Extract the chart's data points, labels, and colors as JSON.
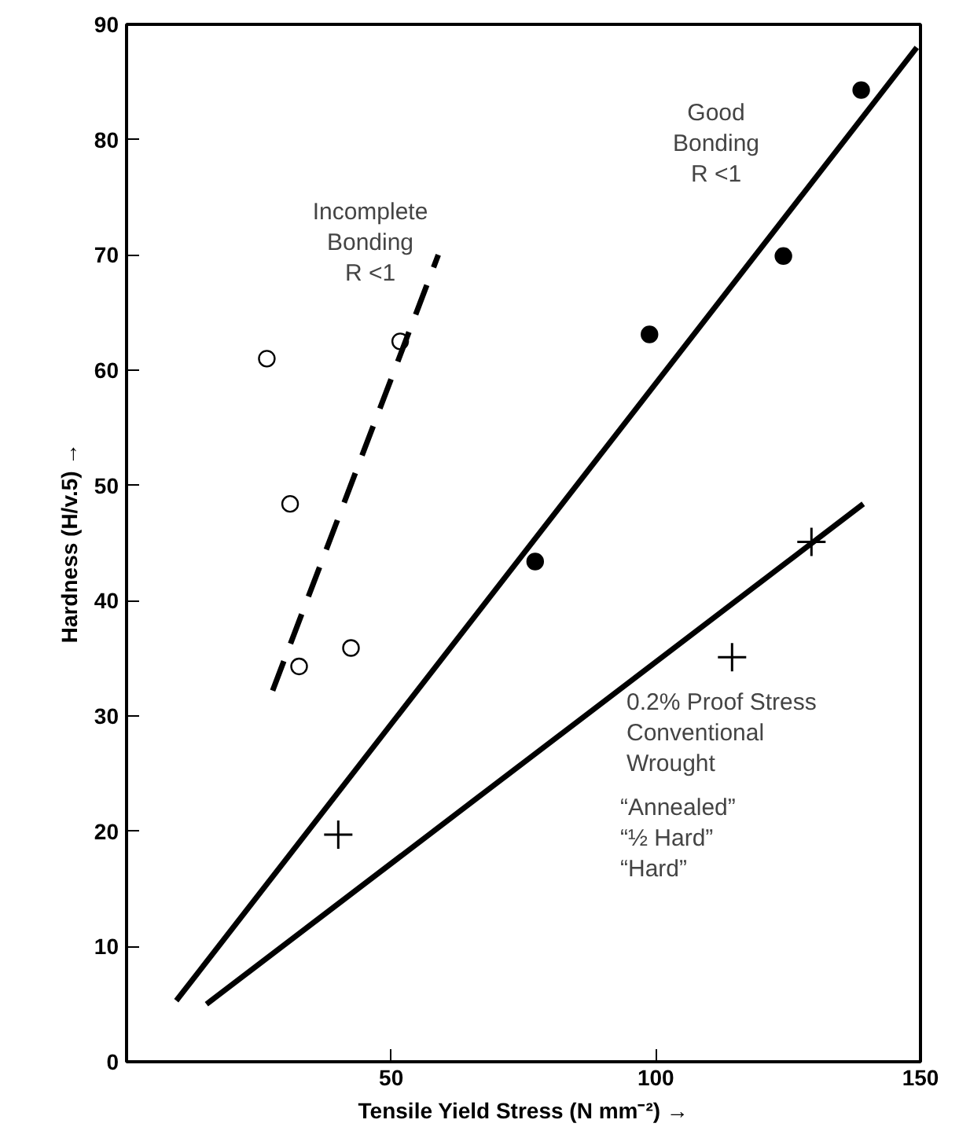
{
  "chart_data": {
    "type": "scatter",
    "xlabel": "Tensile Yield Stress (N mm⁻²) →",
    "ylabel": "Hardness (H/v.5) →",
    "xlim": [
      0,
      150
    ],
    "xticks": [
      50,
      100,
      150
    ],
    "ylim": [
      0,
      90
    ],
    "yticks": [
      0,
      10,
      20,
      30,
      40,
      50,
      60,
      70,
      80,
      90
    ],
    "grid": false,
    "series": [
      {
        "marker": "circle",
        "color": "#ffffff",
        "x": [
          26.5,
          30.9,
          32.6,
          42.4,
          51.7
        ],
        "values": [
          61.0,
          48.4,
          34.3,
          35.9,
          62.5
        ]
      },
      {
        "marker": "circle",
        "color": "#000000",
        "x": [
          77.2,
          98.8,
          124.1,
          138.8
        ],
        "values": [
          43.4,
          63.1,
          69.9,
          84.3
        ]
      },
      {
        "marker": "cross",
        "color": "#000000",
        "x": [
          40.0,
          114.4,
          129.4
        ],
        "values": [
          19.7,
          35.1,
          45.1
        ]
      },
      {
        "type": "line",
        "line_style": "dashed",
        "color": "#000000",
        "x": [
          27.6,
          58.9
        ],
        "values": [
          32.2,
          70.0
        ]
      },
      {
        "type": "line",
        "line_style": "solid",
        "color": "#000000",
        "x": [
          9.4,
          149.3
        ],
        "values": [
          5.3,
          88.0
        ]
      },
      {
        "type": "line",
        "line_style": "solid",
        "color": "#000000",
        "x": [
          15.1,
          139.2
        ],
        "values": [
          5.0,
          48.4
        ]
      }
    ],
    "annotations": [
      "Incomplete\nBonding\nR <1",
      "Good\nBonding\nR <1",
      "0.2% Proof Stress\nConventional\nWrought",
      "“Annealed”\n“½ Hard”\n“Hard”"
    ]
  }
}
